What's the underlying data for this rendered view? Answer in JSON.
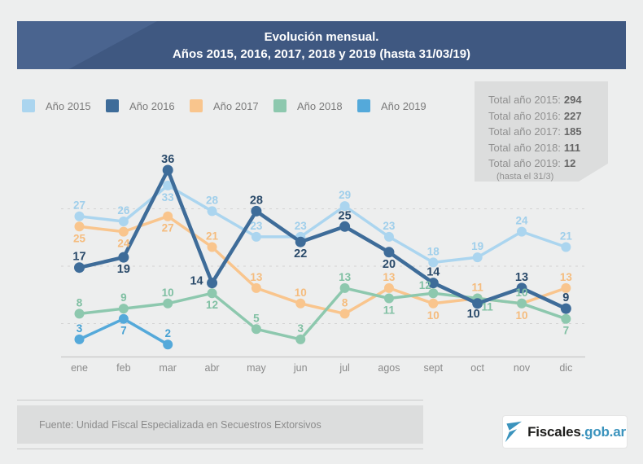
{
  "header": {
    "title_line1": "Evolución mensual.",
    "title_line2": "Años 2015, 2016, 2017, 2018 y 2019 (hasta 31/03/19)"
  },
  "totals": {
    "items": [
      {
        "label": "Total año 2015:",
        "value": "294"
      },
      {
        "label": "Total año 2016:",
        "value": "227"
      },
      {
        "label": "Total año 2017:",
        "value": "185"
      },
      {
        "label": "Total año 2018:",
        "value": "111"
      },
      {
        "label": "Total año 2019:",
        "value": "12"
      }
    ],
    "note": "(hasta el 31/3)"
  },
  "chart_data": {
    "type": "line",
    "title": "Evolución mensual. Años 2015, 2016, 2017, 2018 y 2019 (hasta 31/03/19)",
    "categories": [
      "ene",
      "feb",
      "mar",
      "abr",
      "may",
      "jun",
      "jul",
      "agos",
      "sept",
      "oct",
      "nov",
      "dic"
    ],
    "series": [
      {
        "name": "Año 2015",
        "total": 294,
        "color": "#abd5ef",
        "label_color": "#a0cfeb",
        "values": [
          27,
          26,
          33,
          28,
          23,
          23,
          29,
          23,
          18,
          19,
          24,
          21
        ]
      },
      {
        "name": "Año 2016",
        "total": 227,
        "color": "#3e6c99",
        "label_color": "#2a4a6a",
        "values": [
          17,
          19,
          36,
          14,
          28,
          22,
          25,
          20,
          14,
          10,
          13,
          9
        ]
      },
      {
        "name": "Año 2017",
        "total": 185,
        "color": "#f9c58d",
        "label_color": "#f5bc7e",
        "values": [
          25,
          24,
          27,
          21,
          13,
          10,
          8,
          13,
          10,
          11,
          10,
          13
        ]
      },
      {
        "name": "Año 2018",
        "total": 111,
        "color": "#8dc8ae",
        "label_color": "#80c0a3",
        "values": [
          8,
          9,
          10,
          12,
          5,
          3,
          13,
          11,
          12,
          11,
          10,
          7
        ]
      },
      {
        "name": "Año 2019",
        "total": 12,
        "color": "#54a9da",
        "label_color": "#45a1d3",
        "values": [
          3,
          7,
          2
        ]
      }
    ],
    "ylim": [
      0,
      38
    ],
    "grid": "horizontal-dashed-unlabeled",
    "legend_position": "top-left",
    "point_labels": true
  },
  "footer": {
    "source": "Fuente: Unidad Fiscal Especializada en Secuestros Extorsivos"
  },
  "logo": {
    "text_primary": "Fiscales",
    "text_secondary": ".gob.ar",
    "icon": "flag-icon",
    "color_primary": "#1d1d1b",
    "color_secondary": "#3a93bd"
  }
}
